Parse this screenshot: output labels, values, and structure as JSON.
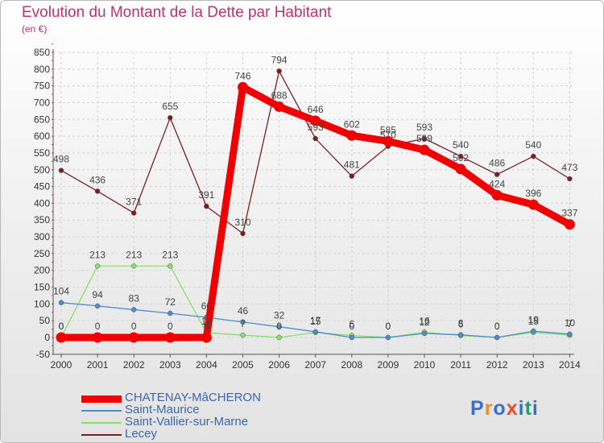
{
  "title": "Evolution du Montant de la Dette par Habitant",
  "subtitle": "(en €)",
  "logo": {
    "letters": [
      "P",
      "r",
      "o",
      "x",
      "i",
      "t",
      "i"
    ],
    "colors": [
      "#3a6fc9",
      "#f08a1c",
      "#3a6fc9",
      "#e84a2a",
      "#3a6fc9",
      "#1f9e6a",
      "#3a6fc9"
    ]
  },
  "chart_data": {
    "type": "line",
    "x": [
      "2000",
      "2001",
      "2002",
      "2003",
      "2004",
      "2005",
      "2006",
      "2007",
      "2008",
      "2009",
      "2010",
      "2011",
      "2012",
      "2013",
      "2014"
    ],
    "ylim": [
      -50,
      850
    ],
    "yticks": [
      "-50",
      "0",
      "50",
      "100",
      "150",
      "200",
      "250",
      "300",
      "350",
      "400",
      "450",
      "500",
      "550",
      "600",
      "650",
      "700",
      "750",
      "800",
      "850"
    ],
    "grid": "horizontal",
    "legend_position": "bottom-left",
    "series": [
      {
        "name": "CHATENAY-MâCHERON",
        "color": "#f00000",
        "values": [
          0,
          0,
          0,
          0,
          0,
          746,
          688,
          646,
          602,
          585,
          559,
          502,
          424,
          396,
          337
        ],
        "labels": [
          "0",
          "0",
          "0",
          "0",
          "0",
          "746",
          "688",
          "646",
          "602",
          "585",
          "559",
          "502",
          "424",
          "396",
          "337"
        ]
      },
      {
        "name": "Saint-Maurice",
        "color": "#4f8cc9",
        "values": [
          104,
          94,
          83,
          72,
          60,
          46,
          32,
          17,
          0,
          0,
          12,
          8,
          0,
          19,
          10
        ],
        "labels": [
          "104",
          "94",
          "83",
          "72",
          "60",
          "46",
          "32",
          "17",
          "0",
          "0",
          "12",
          "8",
          "0",
          "19",
          "10"
        ]
      },
      {
        "name": "Saint-Vallier-sur-Marne",
        "color": "#86e06a",
        "values": [
          0,
          213,
          213,
          213,
          14,
          7,
          0,
          15,
          6,
          0,
          16,
          6,
          0,
          15,
          7
        ],
        "labels": [
          "0",
          "213",
          "213",
          "213",
          "14",
          "7",
          "0",
          "15",
          "6",
          "0",
          "16",
          "6",
          "0",
          "15",
          "7"
        ]
      },
      {
        "name": "Lecey",
        "color": "#7b1f22",
        "values": [
          498,
          436,
          371,
          655,
          391,
          310,
          794,
          593,
          481,
          570,
          593,
          540,
          486,
          540,
          473
        ],
        "labels": [
          "498",
          "436",
          "371",
          "655",
          "391",
          "310",
          "794",
          "593",
          "481",
          "570",
          "593",
          "540",
          "486",
          "540",
          "473"
        ]
      }
    ]
  }
}
